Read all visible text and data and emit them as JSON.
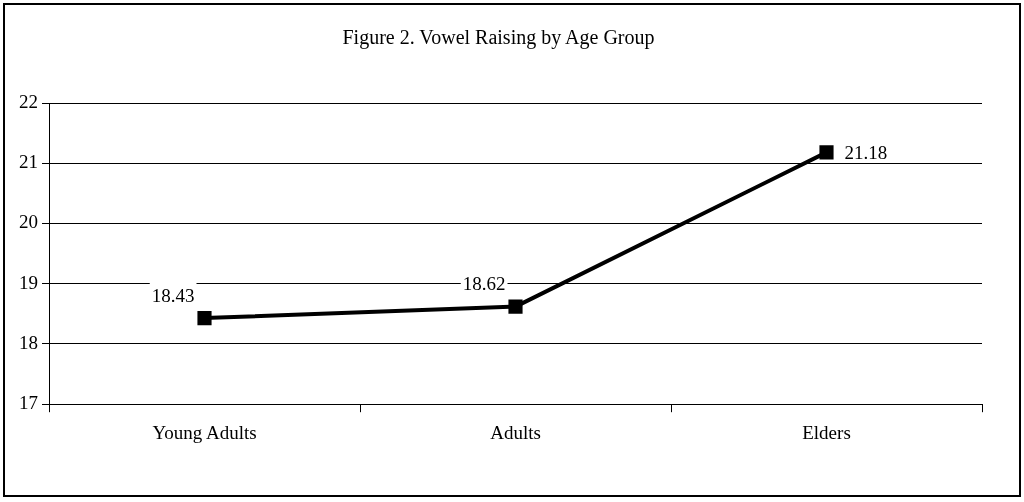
{
  "chart_data": {
    "type": "line",
    "title": "Figure 2. Vowel Raising by Age Group",
    "categories": [
      "Young Adults",
      "Adults",
      "Elders"
    ],
    "series": [
      {
        "color": "#000000",
        "values": [
          18.43,
          18.62,
          21.18
        ]
      }
    ],
    "ylim": [
      17,
      22
    ],
    "yticks": [
      17,
      18,
      19,
      20,
      21,
      22
    ],
    "grid": "y",
    "legend": false,
    "marker": "square",
    "line_style": "solid",
    "data_labels": true
  }
}
